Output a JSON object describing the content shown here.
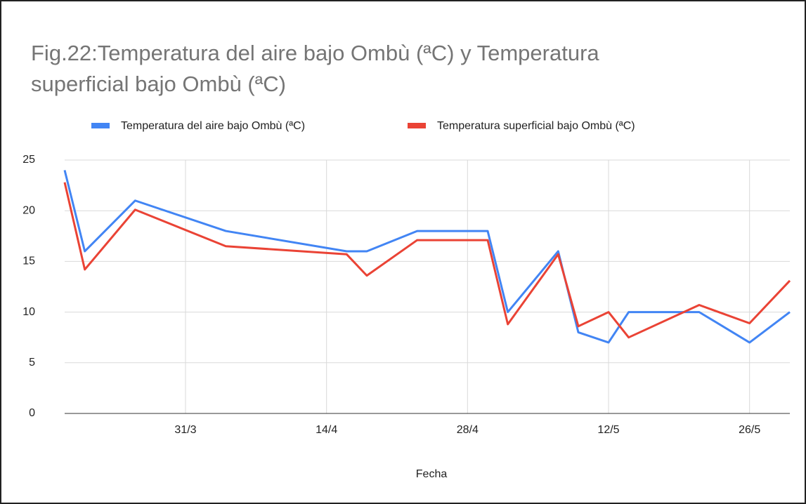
{
  "chart_data": {
    "type": "line",
    "title": "Fig.22:Temperatura del aire bajo Ombù (ªC) y Temperatura superficial bajo Ombù (ªC)",
    "x_label": "Fecha",
    "x": [
      "19/3",
      "21/3",
      "26/3",
      "4/4",
      "16/4",
      "18/4",
      "23/4",
      "30/4",
      "2/5",
      "7/5",
      "9/5",
      "12/5",
      "14/5",
      "21/5",
      "26/5",
      "30/5"
    ],
    "series": [
      {
        "name": "Temperatura del aire bajo Ombù (ªC)",
        "color": "#4285f4",
        "values": [
          24,
          16,
          21,
          18,
          16,
          16,
          18,
          18,
          10,
          16,
          8,
          7,
          10,
          10,
          7,
          10
        ]
      },
      {
        "name": "Temperatura superficial bajo Ombù (ªC)",
        "color": "#ea4335",
        "values": [
          22.8,
          14.2,
          20.1,
          16.5,
          15.7,
          13.6,
          17.1,
          17.1,
          8.8,
          15.7,
          8.6,
          10.0,
          7.5,
          10.7,
          8.9,
          13.1
        ]
      }
    ],
    "xlim": [
      "19/3",
      "30/5"
    ],
    "xticks": [
      "31/3",
      "14/4",
      "28/4",
      "12/5",
      "26/5"
    ],
    "ylim": [
      0,
      25
    ],
    "yticks": [
      0,
      5,
      10,
      15,
      20,
      25
    ],
    "grid": true,
    "legend": "top"
  }
}
